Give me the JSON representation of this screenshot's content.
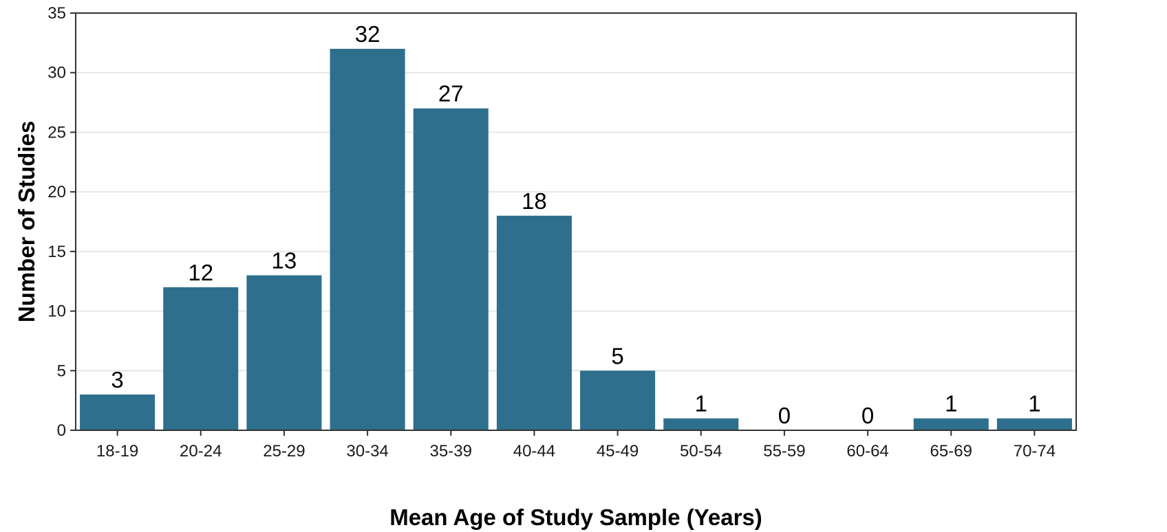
{
  "chart_data": {
    "type": "bar",
    "categories": [
      "18-19",
      "20-24",
      "25-29",
      "30-34",
      "35-39",
      "40-44",
      "45-49",
      "50-54",
      "55-59",
      "60-64",
      "65-69",
      "70-74"
    ],
    "values": [
      3,
      12,
      13,
      32,
      27,
      18,
      5,
      1,
      0,
      0,
      1,
      1
    ],
    "data_labels": [
      "3",
      "12",
      "13",
      "32",
      "27",
      "18",
      "5",
      "1",
      "0",
      "0",
      "1",
      "1"
    ],
    "xlabel": "Mean Age of Study Sample (Years)",
    "ylabel": "Number of Studies",
    "ylim": [
      0,
      35
    ],
    "yticks": [
      "0",
      "5",
      "10",
      "15",
      "20",
      "25",
      "30",
      "35"
    ],
    "grid": "horizontal",
    "bar_color": "#2e6f8e",
    "legend": "none"
  }
}
